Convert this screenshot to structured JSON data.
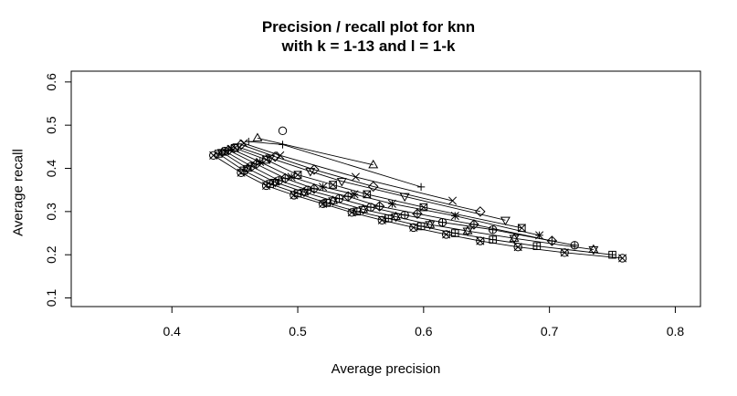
{
  "chart_data": {
    "type": "scatter",
    "title": "Precision / recall plot for knn",
    "subtitle": "with k = 1-13 and l = 1-k",
    "xlabel": "Average precision",
    "ylabel": "Average recall",
    "xlim": [
      0.32,
      0.82
    ],
    "ylim": [
      0.08,
      0.625
    ],
    "xticks": [
      0.4,
      0.5,
      0.6,
      0.7,
      0.8
    ],
    "yticks": [
      0.1,
      0.2,
      0.3,
      0.4,
      0.5,
      0.6
    ],
    "xtick_labels": [
      "0.4",
      "0.5",
      "0.6",
      "0.7",
      "0.8"
    ],
    "ytick_labels": [
      "0.1",
      "0.2",
      "0.3",
      "0.4",
      "0.5",
      "0.6"
    ],
    "grid": false,
    "legend": "none",
    "series": [
      {
        "symbol": "circle",
        "x": [
          0.488
        ],
        "y": [
          0.487
        ]
      },
      {
        "symbol": "triangle",
        "x": [
          0.468,
          0.56
        ],
        "y": [
          0.47,
          0.408
        ]
      },
      {
        "symbol": "plus",
        "x": [
          0.461,
          0.488,
          0.598
        ],
        "y": [
          0.462,
          0.455,
          0.357
        ]
      },
      {
        "symbol": "cross",
        "x": [
          0.457,
          0.486,
          0.546,
          0.623
        ],
        "y": [
          0.458,
          0.43,
          0.38,
          0.325
        ]
      },
      {
        "symbol": "diamond",
        "x": [
          0.455,
          0.482,
          0.513,
          0.56,
          0.645
        ],
        "y": [
          0.455,
          0.427,
          0.397,
          0.358,
          0.3
        ]
      },
      {
        "symbol": "triangle-down",
        "x": [
          0.452,
          0.478,
          0.51,
          0.535,
          0.585,
          0.665
        ],
        "y": [
          0.45,
          0.424,
          0.393,
          0.37,
          0.335,
          0.28
        ]
      },
      {
        "symbol": "square-x",
        "x": [
          0.45,
          0.475,
          0.5,
          0.528,
          0.555,
          0.6,
          0.678
        ],
        "y": [
          0.447,
          0.42,
          0.385,
          0.362,
          0.34,
          0.31,
          0.262
        ]
      },
      {
        "symbol": "star",
        "x": [
          0.447,
          0.47,
          0.495,
          0.52,
          0.545,
          0.575,
          0.625,
          0.692
        ],
        "y": [
          0.445,
          0.415,
          0.38,
          0.357,
          0.34,
          0.318,
          0.29,
          0.245
        ]
      },
      {
        "symbol": "diamond-plus",
        "x": [
          0.445,
          0.467,
          0.49,
          0.513,
          0.54,
          0.565,
          0.595,
          0.64,
          0.702
        ],
        "y": [
          0.442,
          0.41,
          0.377,
          0.353,
          0.335,
          0.312,
          0.295,
          0.27,
          0.232
        ]
      },
      {
        "symbol": "circle-plus",
        "x": [
          0.442,
          0.463,
          0.485,
          0.508,
          0.533,
          0.558,
          0.585,
          0.615,
          0.655,
          0.72
        ],
        "y": [
          0.44,
          0.405,
          0.372,
          0.35,
          0.33,
          0.31,
          0.292,
          0.275,
          0.258,
          0.222
        ]
      },
      {
        "symbol": "triangle-updown",
        "x": [
          0.44,
          0.46,
          0.482,
          0.505,
          0.528,
          0.552,
          0.578,
          0.605,
          0.635,
          0.672,
          0.735
        ],
        "y": [
          0.437,
          0.4,
          0.368,
          0.345,
          0.325,
          0.305,
          0.288,
          0.27,
          0.255,
          0.238,
          0.212
        ]
      },
      {
        "symbol": "square-plus",
        "x": [
          0.437,
          0.457,
          0.478,
          0.5,
          0.523,
          0.547,
          0.572,
          0.598,
          0.625,
          0.655,
          0.69,
          0.75
        ],
        "y": [
          0.434,
          0.395,
          0.364,
          0.342,
          0.32,
          0.3,
          0.284,
          0.266,
          0.25,
          0.235,
          0.22,
          0.2
        ]
      },
      {
        "symbol": "circle-x",
        "x": [
          0.433,
          0.455,
          0.475,
          0.497,
          0.52,
          0.543,
          0.567,
          0.592,
          0.618,
          0.645,
          0.675,
          0.712,
          0.758
        ],
        "y": [
          0.43,
          0.39,
          0.36,
          0.338,
          0.318,
          0.298,
          0.28,
          0.263,
          0.247,
          0.232,
          0.218,
          0.205,
          0.192
        ]
      }
    ]
  }
}
